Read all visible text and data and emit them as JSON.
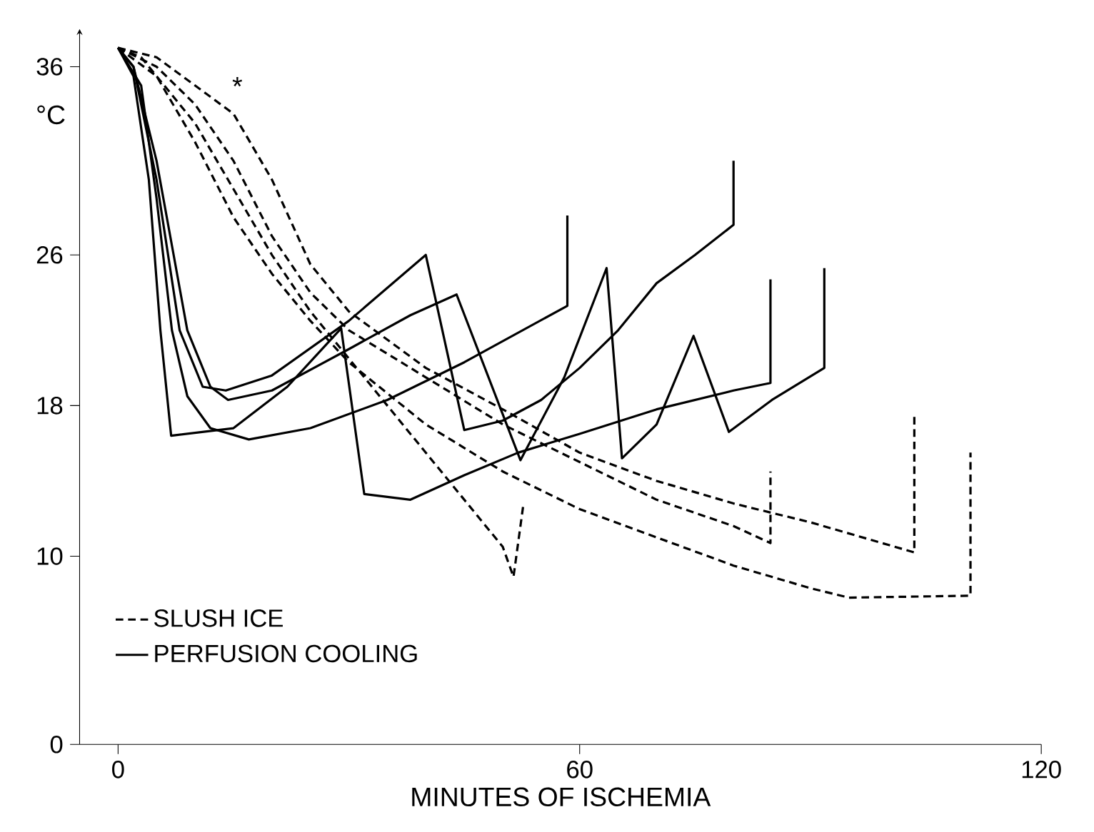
{
  "chart_data": {
    "type": "line",
    "xlabel": "MINUTES OF ISCHEMIA",
    "ylabel": "°C",
    "xlim": [
      -5,
      120
    ],
    "ylim": [
      0,
      38
    ],
    "xticks": [
      0,
      60,
      120
    ],
    "yticks": [
      0,
      10,
      18,
      26,
      36
    ],
    "legend": "bottom left",
    "annotations": [
      "*"
    ],
    "series": [
      {
        "name": "SLUSH ICE",
        "color": "#000000",
        "line_style": "dashed",
        "x": [
          0,
          3,
          10,
          15,
          20,
          25,
          30,
          35,
          40,
          45,
          50,
          51.4,
          52.7
        ],
        "values": [
          37,
          36.5,
          33,
          29.5,
          26,
          23,
          20.5,
          18,
          15.5,
          13,
          10.5,
          8.9,
          12.8
        ]
      },
      {
        "color": "#000000",
        "line_style": "dashed",
        "x": [
          0,
          5,
          10,
          15,
          20,
          25,
          30,
          40,
          50,
          60,
          70,
          80,
          84.8,
          84.8
        ],
        "values": [
          37,
          36,
          34,
          31,
          27,
          24,
          22,
          19.5,
          17,
          15,
          13,
          11.6,
          10.7,
          14.5
        ]
      },
      {
        "color": "#000000",
        "line_style": "dashed",
        "x": [
          0,
          5,
          10,
          15,
          20,
          25,
          30,
          40,
          50,
          60,
          70,
          80,
          90,
          103.5,
          103.5
        ],
        "values": [
          37,
          36.5,
          35,
          33.5,
          30,
          25.5,
          23,
          20,
          17.8,
          15.5,
          14,
          12.8,
          11.8,
          10.2,
          17.6
        ]
      },
      {
        "color": "#000000",
        "line_style": "dashed",
        "x": [
          0,
          5,
          10,
          15,
          20,
          25,
          30,
          40,
          50,
          60,
          70,
          80,
          90,
          95,
          110.8,
          110.8
        ],
        "values": [
          37,
          35.5,
          32,
          28,
          25,
          22.5,
          20.3,
          17,
          14.5,
          12.5,
          11,
          9.5,
          8.3,
          7.8,
          7.9,
          15.5
        ]
      },
      {
        "name": "PERFUSION COOLING",
        "color": "#000000",
        "line_style": "solid",
        "x": [
          0,
          2,
          5,
          8,
          11,
          14,
          20,
          30,
          40,
          45,
          50,
          55,
          60,
          65,
          70,
          75,
          80,
          80
        ],
        "values": [
          37,
          36,
          30,
          22,
          19,
          18.8,
          19.6,
          22.5,
          26,
          16.7,
          17.2,
          18.3,
          20,
          22,
          24.5,
          26,
          27.6,
          31
        ]
      },
      {
        "color": "#000000",
        "line_style": "solid",
        "x": [
          0,
          2,
          5,
          9,
          12,
          14.3,
          20,
          30,
          38,
          44,
          52.3,
          58,
          63.5,
          65.5,
          70,
          74.8,
          79.4,
          85,
          91.8,
          91.8
        ],
        "values": [
          37,
          36,
          31,
          22,
          19,
          18.3,
          18.8,
          21,
          22.8,
          23.9,
          15.1,
          19.5,
          25.3,
          15.2,
          17,
          21.7,
          16.6,
          18.3,
          20,
          25.3
        ]
      },
      {
        "color": "#000000",
        "line_style": "solid",
        "x": [
          0,
          2,
          4,
          5.5,
          6.9,
          15,
          22,
          29,
          32,
          38,
          45,
          52,
          60,
          70,
          80,
          84.8,
          84.8
        ],
        "values": [
          37,
          35.5,
          30,
          22,
          16.4,
          16.8,
          19,
          22.1,
          13.3,
          13,
          14.3,
          15.5,
          16.5,
          17.8,
          18.8,
          19.2,
          24.7
        ]
      },
      {
        "color": "#000000",
        "line_style": "solid",
        "x": [
          0,
          3,
          5,
          7,
          9,
          12,
          17,
          25,
          35,
          45,
          58.4,
          58.4
        ],
        "values": [
          37,
          35,
          29,
          22,
          18.5,
          16.8,
          16.2,
          16.8,
          18.3,
          20.3,
          23.3,
          28.1
        ]
      }
    ]
  }
}
